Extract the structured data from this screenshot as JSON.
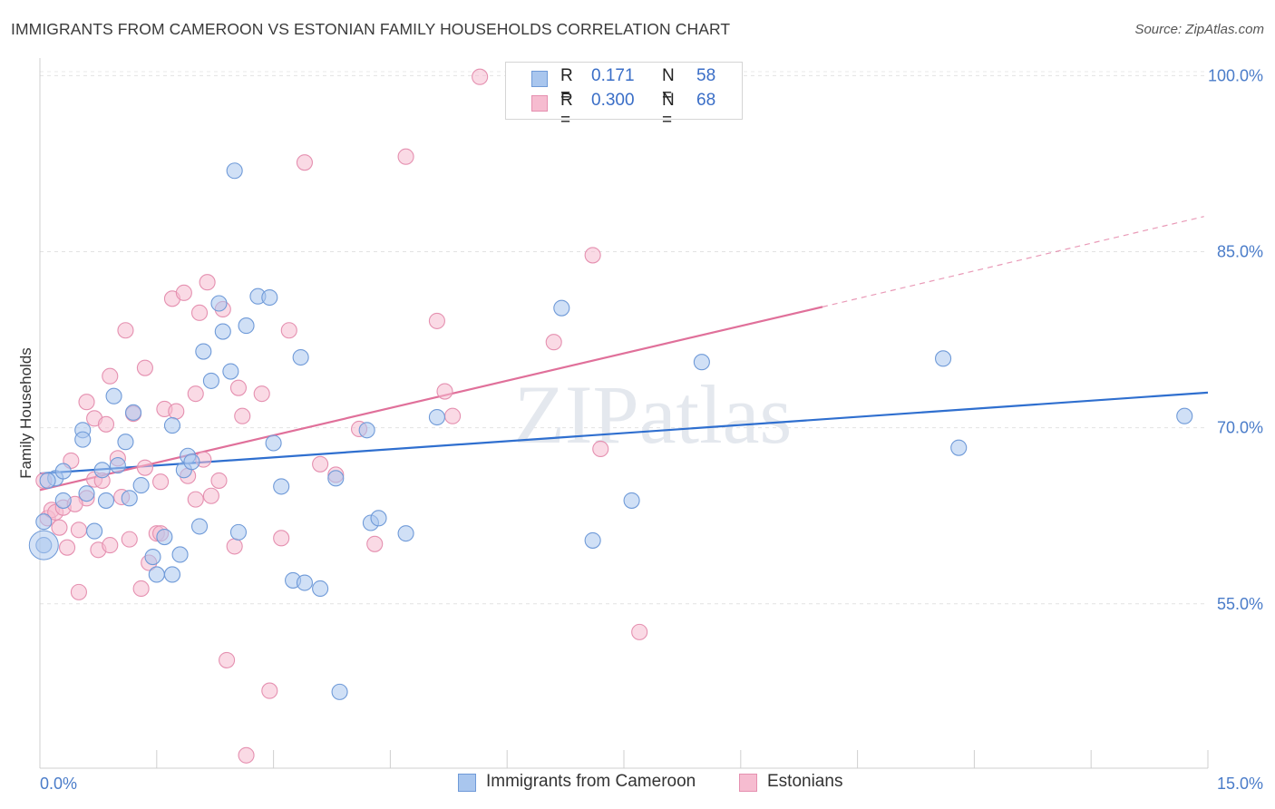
{
  "title": "IMMIGRANTS FROM CAMEROON VS ESTONIAN FAMILY HOUSEHOLDS CORRELATION CHART",
  "source": "Source: ZipAtlas.com",
  "watermark": "ZIPatlas",
  "legend": {
    "r_label": "R =",
    "n_label": "N =",
    "rows": [
      {
        "r": "0.171",
        "n": "58",
        "color": "#a9c6ee",
        "border": "#6f9ad8"
      },
      {
        "r": "0.300",
        "n": "68",
        "color": "#f6bcd0",
        "border": "#e590b0"
      }
    ]
  },
  "chart_data": {
    "type": "scatter",
    "xlabel": "",
    "ylabel": "Family Households",
    "xlim": [
      0,
      15
    ],
    "ylim": [
      41,
      101.5
    ],
    "x_tick_labels": [
      "0.0%",
      "15.0%"
    ],
    "y_ticks": [
      55,
      70,
      85,
      100
    ],
    "y_tick_labels": [
      "55.0%",
      "70.0%",
      "85.0%",
      "100.0%"
    ],
    "grid": true,
    "legend_position": "top-center",
    "series": [
      {
        "name": "Immigrants from Cameroon",
        "color": "#a9c6ee",
        "stroke": "#6f9ad8",
        "line_color": "#2f6fcf",
        "trend": {
          "x0": 0,
          "y0": 66.1,
          "x1": 15,
          "y1": 73.0
        },
        "points": [
          [
            0.05,
            62.0
          ],
          [
            0.05,
            60.0
          ],
          [
            0.2,
            65.7
          ],
          [
            0.3,
            66.3
          ],
          [
            0.3,
            63.8
          ],
          [
            0.55,
            69.8
          ],
          [
            0.6,
            64.4
          ],
          [
            0.7,
            61.2
          ],
          [
            0.8,
            66.4
          ],
          [
            0.85,
            63.8
          ],
          [
            0.95,
            72.7
          ],
          [
            1.0,
            66.8
          ],
          [
            1.1,
            68.8
          ],
          [
            1.15,
            64.0
          ],
          [
            1.2,
            71.3
          ],
          [
            1.3,
            65.1
          ],
          [
            1.45,
            59.0
          ],
          [
            1.5,
            57.5
          ],
          [
            1.6,
            60.7
          ],
          [
            1.7,
            57.5
          ],
          [
            1.7,
            70.2
          ],
          [
            1.8,
            59.2
          ],
          [
            1.85,
            66.4
          ],
          [
            1.9,
            67.6
          ],
          [
            1.95,
            67.1
          ],
          [
            2.05,
            61.6
          ],
          [
            2.1,
            76.5
          ],
          [
            2.2,
            74.0
          ],
          [
            2.3,
            80.6
          ],
          [
            2.35,
            78.2
          ],
          [
            2.45,
            74.8
          ],
          [
            2.5,
            91.9
          ],
          [
            2.55,
            61.1
          ],
          [
            2.65,
            78.7
          ],
          [
            2.8,
            81.2
          ],
          [
            2.95,
            81.1
          ],
          [
            3.0,
            68.7
          ],
          [
            3.1,
            65.0
          ],
          [
            3.25,
            57.0
          ],
          [
            3.35,
            76.0
          ],
          [
            3.4,
            56.8
          ],
          [
            3.6,
            56.3
          ],
          [
            3.8,
            65.7
          ],
          [
            4.2,
            69.8
          ],
          [
            4.25,
            61.9
          ],
          [
            4.35,
            62.3
          ],
          [
            4.7,
            61.0
          ],
          [
            5.1,
            70.9
          ],
          [
            6.7,
            80.2
          ],
          [
            7.1,
            60.4
          ],
          [
            7.6,
            63.8
          ],
          [
            8.5,
            75.6
          ],
          [
            11.6,
            75.9
          ],
          [
            11.8,
            68.3
          ],
          [
            14.7,
            71.0
          ],
          [
            3.85,
            47.5
          ],
          [
            0.1,
            65.5
          ],
          [
            0.55,
            69.0
          ]
        ]
      },
      {
        "name": "Estonians",
        "color": "#f6bcd0",
        "stroke": "#e590b0",
        "line_color": "#e0709a",
        "trend": {
          "x0": 0,
          "y0": 64.7,
          "x1": 10.05,
          "y1": 80.3
        },
        "trend_ext": {
          "x0": 10.05,
          "y0": 80.3,
          "x1": 14.95,
          "y1": 88.0
        },
        "points": [
          [
            0.05,
            65.5
          ],
          [
            0.1,
            62.3
          ],
          [
            0.15,
            63.0
          ],
          [
            0.2,
            62.8
          ],
          [
            0.3,
            63.2
          ],
          [
            0.35,
            59.8
          ],
          [
            0.4,
            67.2
          ],
          [
            0.5,
            61.3
          ],
          [
            0.5,
            56.0
          ],
          [
            0.6,
            72.2
          ],
          [
            0.7,
            65.6
          ],
          [
            0.7,
            70.8
          ],
          [
            0.75,
            59.6
          ],
          [
            0.8,
            65.5
          ],
          [
            0.85,
            70.3
          ],
          [
            0.9,
            74.4
          ],
          [
            1.0,
            67.4
          ],
          [
            1.05,
            64.1
          ],
          [
            1.1,
            78.3
          ],
          [
            1.15,
            60.5
          ],
          [
            1.2,
            71.2
          ],
          [
            1.3,
            56.3
          ],
          [
            1.35,
            66.6
          ],
          [
            1.35,
            75.1
          ],
          [
            1.4,
            58.5
          ],
          [
            1.5,
            61.0
          ],
          [
            1.55,
            65.4
          ],
          [
            1.6,
            71.6
          ],
          [
            1.7,
            81.0
          ],
          [
            1.75,
            71.4
          ],
          [
            1.85,
            81.5
          ],
          [
            1.9,
            65.9
          ],
          [
            2.0,
            63.9
          ],
          [
            2.0,
            72.9
          ],
          [
            2.05,
            79.8
          ],
          [
            2.1,
            67.3
          ],
          [
            2.15,
            82.4
          ],
          [
            2.3,
            65.5
          ],
          [
            2.35,
            80.1
          ],
          [
            2.4,
            50.2
          ],
          [
            2.5,
            59.9
          ],
          [
            2.55,
            73.4
          ],
          [
            2.6,
            71.0
          ],
          [
            2.65,
            42.1
          ],
          [
            2.85,
            72.9
          ],
          [
            2.95,
            47.6
          ],
          [
            3.1,
            60.6
          ],
          [
            3.2,
            78.3
          ],
          [
            3.4,
            92.6
          ],
          [
            3.6,
            66.9
          ],
          [
            3.8,
            66.0
          ],
          [
            4.1,
            69.9
          ],
          [
            4.3,
            60.1
          ],
          [
            4.7,
            93.1
          ],
          [
            5.1,
            79.1
          ],
          [
            5.2,
            73.1
          ],
          [
            5.3,
            71.0
          ],
          [
            5.65,
            99.9
          ],
          [
            6.6,
            77.3
          ],
          [
            7.1,
            84.7
          ],
          [
            7.2,
            68.2
          ],
          [
            7.7,
            52.6
          ],
          [
            1.55,
            61.0
          ],
          [
            0.6,
            64.0
          ],
          [
            0.45,
            63.5
          ],
          [
            0.9,
            60.0
          ],
          [
            2.2,
            64.2
          ],
          [
            0.25,
            61.5
          ]
        ]
      }
    ]
  }
}
